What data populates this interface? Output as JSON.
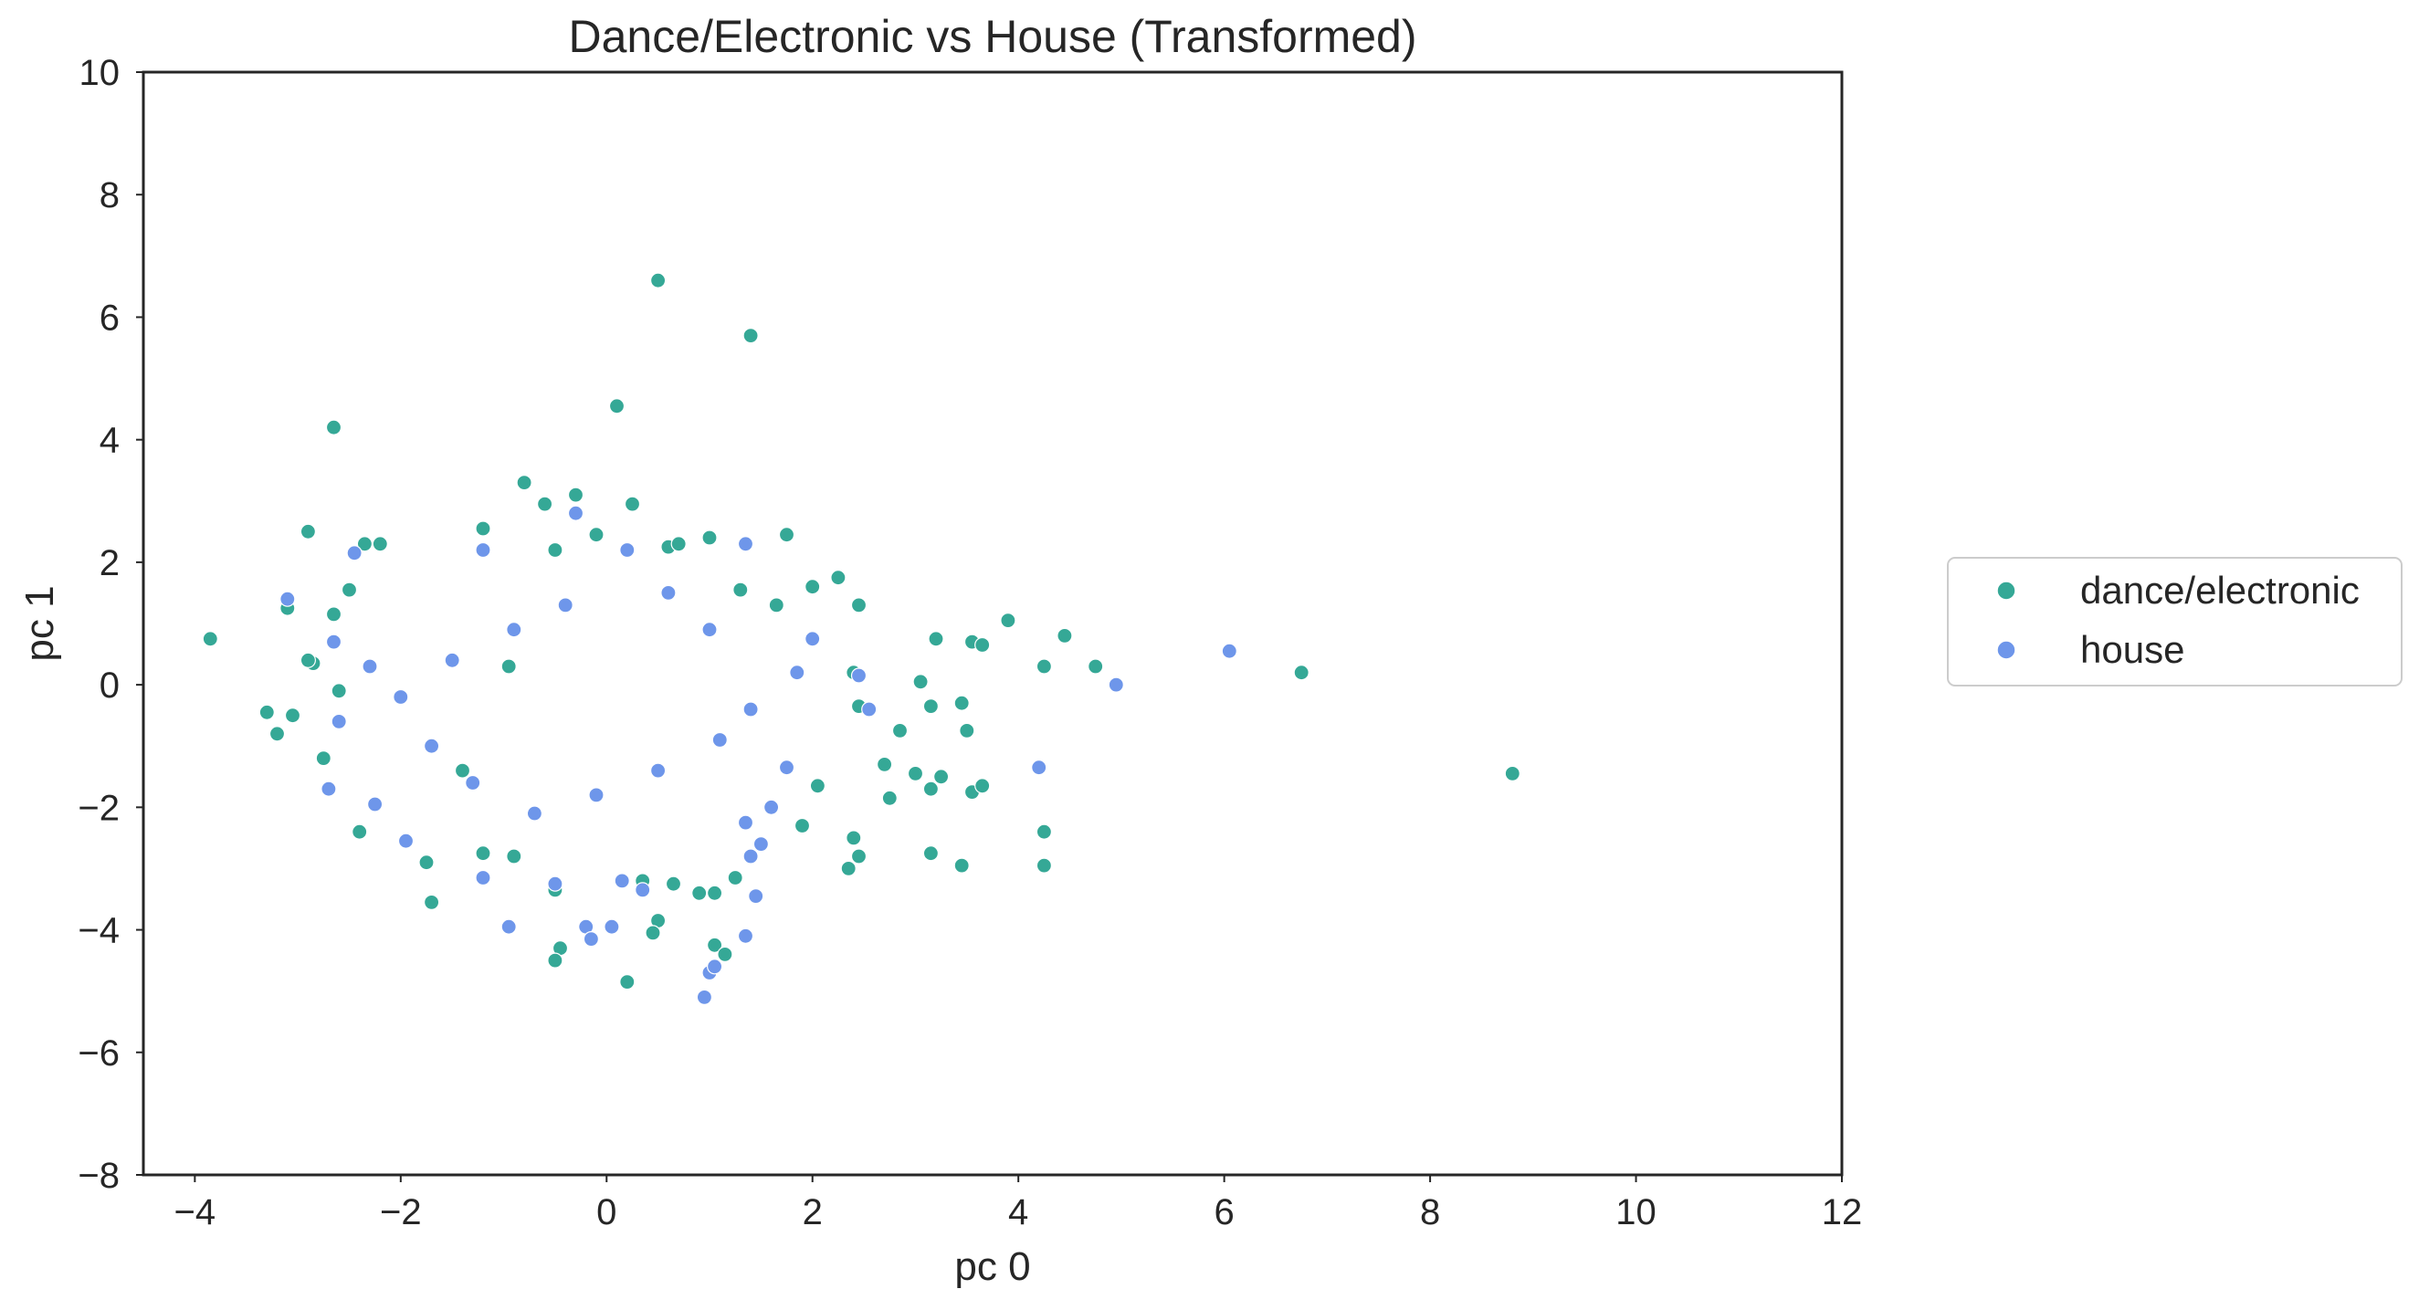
{
  "chart_data": {
    "type": "scatter",
    "title": "Dance/Electronic vs House (Transformed)",
    "xlabel": "pc 0",
    "ylabel": "pc 1",
    "xlim": [
      -4.5,
      12
    ],
    "ylim": [
      -8,
      10
    ],
    "xticks": [
      -4,
      -2,
      0,
      2,
      4,
      6,
      8,
      10,
      12
    ],
    "yticks": [
      -8,
      -6,
      -4,
      -2,
      0,
      2,
      4,
      6,
      8,
      10
    ],
    "xtick_labels": [
      "−4",
      "−2",
      "0",
      "2",
      "4",
      "6",
      "8",
      "10",
      "12"
    ],
    "ytick_labels": [
      "−8",
      "−6",
      "−4",
      "−2",
      "0",
      "2",
      "4",
      "6",
      "8",
      "10"
    ],
    "grid": false,
    "legend_position": "outside-right",
    "series": [
      {
        "name": "dance/electronic",
        "color": "#35a896",
        "points": [
          [
            0.5,
            6.6
          ],
          [
            1.4,
            5.7
          ],
          [
            0.1,
            4.55
          ],
          [
            -2.65,
            4.2
          ],
          [
            -0.8,
            3.3
          ],
          [
            -0.3,
            3.1
          ],
          [
            -0.6,
            2.95
          ],
          [
            0.25,
            2.95
          ],
          [
            -2.9,
            2.5
          ],
          [
            -1.2,
            2.55
          ],
          [
            -0.1,
            2.45
          ],
          [
            1.0,
            2.4
          ],
          [
            1.75,
            2.45
          ],
          [
            -2.35,
            2.3
          ],
          [
            -2.2,
            2.3
          ],
          [
            -0.5,
            2.2
          ],
          [
            0.6,
            2.25
          ],
          [
            0.7,
            2.3
          ],
          [
            -3.85,
            0.75
          ],
          [
            -3.1,
            1.25
          ],
          [
            -2.5,
            1.55
          ],
          [
            3.9,
            1.05
          ],
          [
            4.45,
            0.8
          ],
          [
            3.2,
            0.75
          ],
          [
            3.55,
            0.7
          ],
          [
            3.65,
            0.65
          ],
          [
            4.25,
            0.3
          ],
          [
            4.75,
            0.3
          ],
          [
            3.05,
            0.05
          ],
          [
            6.75,
            0.2
          ],
          [
            8.8,
            -1.45
          ],
          [
            -3.3,
            -0.45
          ],
          [
            -3.2,
            -0.8
          ],
          [
            -3.05,
            -0.5
          ],
          [
            -2.75,
            -1.2
          ],
          [
            -2.4,
            -2.4
          ],
          [
            -1.75,
            -2.9
          ],
          [
            -1.7,
            -3.55
          ],
          [
            -0.9,
            -2.8
          ],
          [
            -0.5,
            -3.35
          ],
          [
            -0.45,
            -4.3
          ],
          [
            -0.5,
            -4.5
          ],
          [
            0.2,
            -4.85
          ],
          [
            1.05,
            -4.25
          ],
          [
            1.15,
            -4.4
          ],
          [
            0.9,
            -3.4
          ],
          [
            1.05,
            -3.4
          ],
          [
            1.25,
            -3.15
          ],
          [
            2.4,
            -2.5
          ],
          [
            2.45,
            -2.8
          ],
          [
            2.35,
            -3.0
          ],
          [
            3.15,
            -2.75
          ],
          [
            3.45,
            -2.95
          ],
          [
            4.25,
            -2.4
          ],
          [
            4.25,
            -2.95
          ],
          [
            1.9,
            -2.3
          ],
          [
            2.05,
            -1.65
          ],
          [
            2.7,
            -1.3
          ],
          [
            2.75,
            -1.85
          ],
          [
            3.0,
            -1.45
          ],
          [
            3.15,
            -1.7
          ],
          [
            3.25,
            -1.5
          ],
          [
            3.55,
            -1.75
          ],
          [
            3.65,
            -1.65
          ],
          [
            2.45,
            -0.35
          ],
          [
            2.85,
            -0.75
          ],
          [
            3.15,
            -0.35
          ],
          [
            3.45,
            -0.3
          ],
          [
            3.5,
            -0.75
          ],
          [
            2.4,
            0.2
          ],
          [
            2.45,
            1.3
          ],
          [
            2.25,
            1.75
          ],
          [
            2.0,
            1.6
          ],
          [
            1.65,
            1.3
          ],
          [
            1.3,
            1.55
          ],
          [
            -2.65,
            1.15
          ],
          [
            -2.85,
            0.35
          ],
          [
            -2.9,
            0.4
          ],
          [
            -2.6,
            -0.1
          ],
          [
            -1.2,
            -2.75
          ],
          [
            0.35,
            -3.2
          ],
          [
            0.5,
            -3.85
          ],
          [
            0.65,
            -3.25
          ],
          [
            0.45,
            -4.05
          ],
          [
            -0.95,
            0.3
          ],
          [
            -1.4,
            -1.4
          ]
        ]
      },
      {
        "name": "house",
        "color": "#6e96ea",
        "points": [
          [
            -0.3,
            2.8
          ],
          [
            1.35,
            2.3
          ],
          [
            -1.2,
            2.2
          ],
          [
            -2.45,
            2.15
          ],
          [
            -3.1,
            1.4
          ],
          [
            -2.65,
            0.7
          ],
          [
            -2.3,
            0.3
          ],
          [
            -2.6,
            -0.6
          ],
          [
            -2.7,
            -1.7
          ],
          [
            -2.25,
            -1.95
          ],
          [
            -1.95,
            -2.55
          ],
          [
            -1.2,
            -3.15
          ],
          [
            -0.95,
            -3.95
          ],
          [
            -0.2,
            -3.95
          ],
          [
            -0.15,
            -4.15
          ],
          [
            0.05,
            -3.95
          ],
          [
            -0.5,
            -3.25
          ],
          [
            0.15,
            -3.2
          ],
          [
            0.35,
            -3.35
          ],
          [
            1.0,
            -4.7
          ],
          [
            1.05,
            -4.6
          ],
          [
            0.95,
            -5.1
          ],
          [
            1.35,
            -4.1
          ],
          [
            1.4,
            -2.8
          ],
          [
            1.5,
            -2.6
          ],
          [
            1.35,
            -2.25
          ],
          [
            1.45,
            -3.45
          ],
          [
            1.6,
            -2.0
          ],
          [
            1.75,
            -1.35
          ],
          [
            2.45,
            0.15
          ],
          [
            2.55,
            -0.4
          ],
          [
            2.0,
            0.75
          ],
          [
            1.85,
            0.2
          ],
          [
            6.05,
            0.55
          ],
          [
            4.95,
            0.0
          ],
          [
            4.2,
            -1.35
          ],
          [
            1.0,
            0.9
          ],
          [
            0.6,
            1.5
          ],
          [
            0.2,
            2.2
          ],
          [
            -0.4,
            1.3
          ],
          [
            -0.9,
            0.9
          ],
          [
            -1.5,
            0.4
          ],
          [
            -2.0,
            -0.2
          ],
          [
            -1.7,
            -1.0
          ],
          [
            -1.3,
            -1.6
          ],
          [
            -0.7,
            -2.1
          ],
          [
            -0.1,
            -1.8
          ],
          [
            0.5,
            -1.4
          ],
          [
            1.1,
            -0.9
          ],
          [
            1.4,
            -0.4
          ]
        ]
      }
    ]
  }
}
